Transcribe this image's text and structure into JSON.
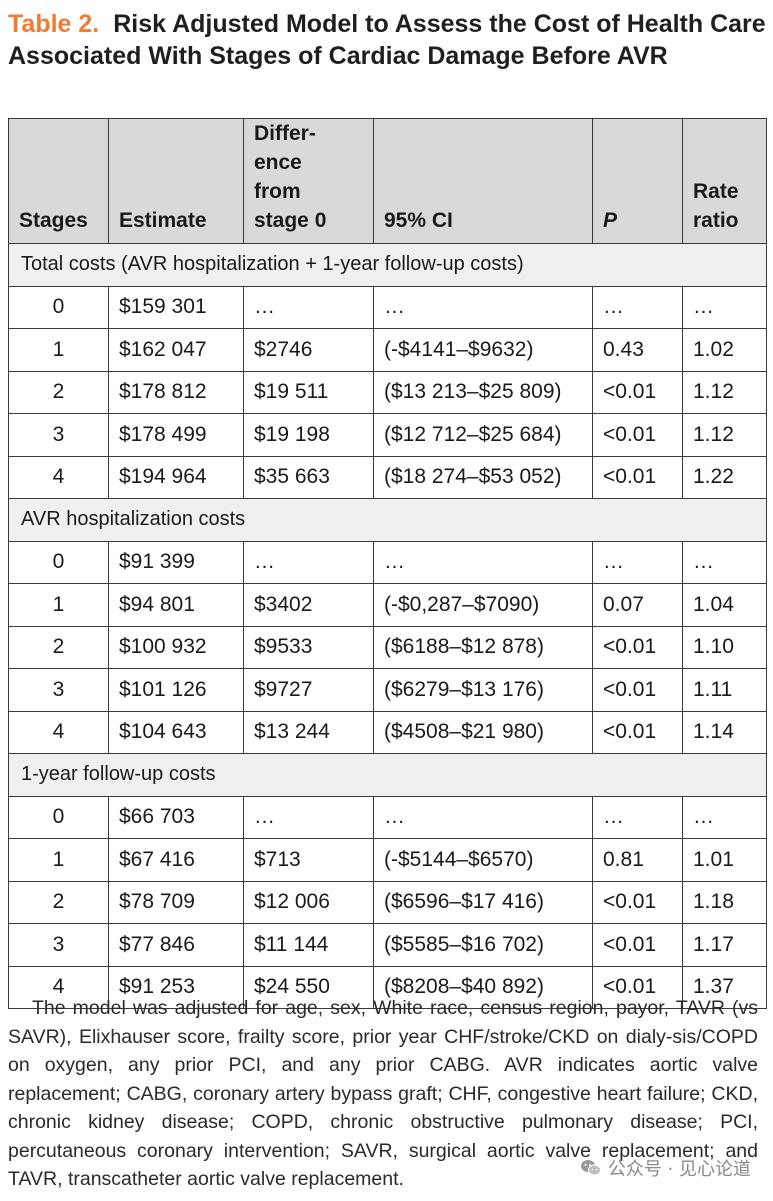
{
  "title": {
    "label": "Table 2.",
    "text": "Risk Adjusted Model to Assess the Cost of Health Care Associated With Stages of Cardiac Damage Before AVR"
  },
  "table": {
    "headers": {
      "stages": "Stages",
      "estimate": "Estimate",
      "difference": "Differ- ence from stage 0",
      "ci": "95% CI",
      "p": "P",
      "rate_ratio": "Rate ratio"
    },
    "sections": [
      {
        "label": "Total costs (AVR hospitalization + 1-year follow-up costs)",
        "rows": [
          {
            "stage": "0",
            "estimate": "$159 301",
            "diff": "…",
            "ci": "…",
            "p": "…",
            "rr": "…"
          },
          {
            "stage": "1",
            "estimate": "$162 047",
            "diff": "$2746",
            "ci": "(-$4141–$9632)",
            "p": "0.43",
            "rr": "1.02"
          },
          {
            "stage": "2",
            "estimate": "$178 812",
            "diff": "$19 511",
            "ci": "($13 213–$25 809)",
            "p": "<0.01",
            "rr": "1.12"
          },
          {
            "stage": "3",
            "estimate": "$178 499",
            "diff": "$19 198",
            "ci": "($12 712–$25 684)",
            "p": "<0.01",
            "rr": "1.12"
          },
          {
            "stage": "4",
            "estimate": "$194 964",
            "diff": "$35 663",
            "ci": "($18 274–$53 052)",
            "p": "<0.01",
            "rr": "1.22"
          }
        ]
      },
      {
        "label": "AVR hospitalization costs",
        "rows": [
          {
            "stage": "0",
            "estimate": "$91 399",
            "diff": "…",
            "ci": "…",
            "p": "…",
            "rr": "…"
          },
          {
            "stage": "1",
            "estimate": "$94 801",
            "diff": "$3402",
            "ci": "(-$0,287–$7090)",
            "p": "0.07",
            "rr": "1.04"
          },
          {
            "stage": "2",
            "estimate": "$100 932",
            "diff": "$9533",
            "ci": "($6188–$12 878)",
            "p": "<0.01",
            "rr": "1.10"
          },
          {
            "stage": "3",
            "estimate": "$101 126",
            "diff": "$9727",
            "ci": "($6279–$13 176)",
            "p": "<0.01",
            "rr": "1.11"
          },
          {
            "stage": "4",
            "estimate": "$104 643",
            "diff": "$13 244",
            "ci": "($4508–$21 980)",
            "p": "<0.01",
            "rr": "1.14"
          }
        ]
      },
      {
        "label": "1-year follow-up costs",
        "rows": [
          {
            "stage": "0",
            "estimate": "$66 703",
            "diff": "…",
            "ci": "…",
            "p": "…",
            "rr": "…"
          },
          {
            "stage": "1",
            "estimate": "$67 416",
            "diff": "$713",
            "ci": "(-$5144–$6570)",
            "p": "0.81",
            "rr": "1.01"
          },
          {
            "stage": "2",
            "estimate": "$78 709",
            "diff": "$12 006",
            "ci": "($6596–$17 416)",
            "p": "<0.01",
            "rr": "1.18"
          },
          {
            "stage": "3",
            "estimate": "$77 846",
            "diff": "$11 144",
            "ci": "($5585–$16 702)",
            "p": "<0.01",
            "rr": "1.17"
          },
          {
            "stage": "4",
            "estimate": "$91 253",
            "diff": "$24 550",
            "ci": "($8208–$40 892)",
            "p": "<0.01",
            "rr": "1.37"
          }
        ]
      }
    ]
  },
  "footnote": "The model was adjusted for age, sex, White race, census region, payor, TAVR (vs SAVR), Elixhauser score, frailty score, prior year CHF/stroke/CKD on dialy-sis/COPD on oxygen, any prior PCI, and any prior CABG. AVR indicates aortic valve replacement; CABG, coronary artery bypass graft; CHF, congestive heart failure; CKD, chronic kidney disease; COPD, chronic obstructive pulmonary disease; PCI, percutaneous coronary intervention; SAVR, surgical aortic valve replacement; and TAVR, transcatheter aortic valve replacement.",
  "watermark": {
    "icon": "wechat-icon",
    "text": "公众号 · 见心论道"
  },
  "colors": {
    "title_label": "#f07c34",
    "header_bg": "#d9d9d9",
    "section_bg": "#f0f0f0"
  }
}
